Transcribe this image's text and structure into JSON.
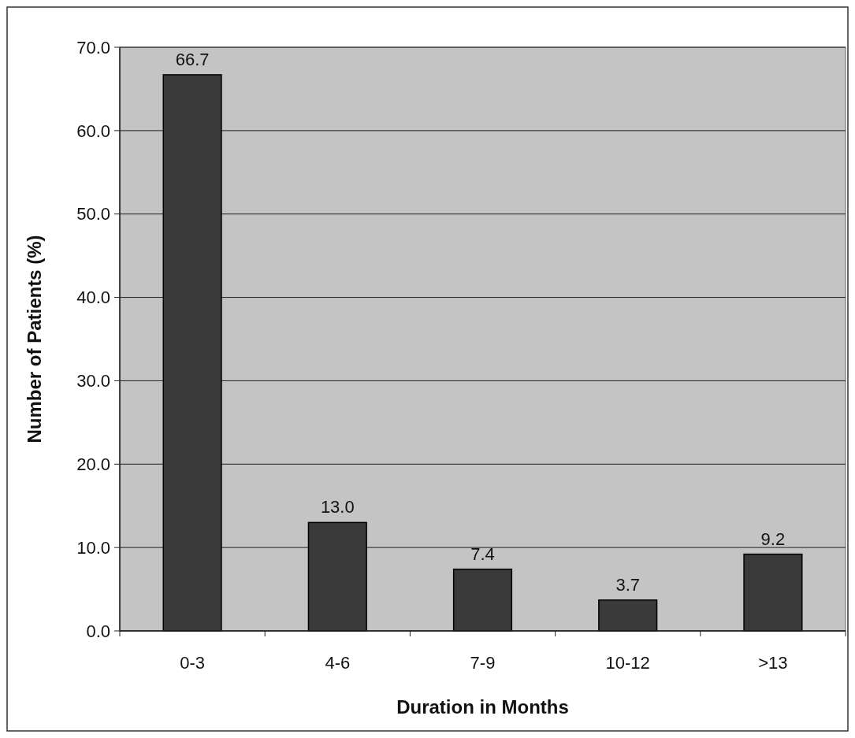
{
  "chart_data": {
    "type": "bar",
    "xlabel": "Duration in Months",
    "ylabel": "Number of Patients (%)",
    "categories": [
      "0-3",
      "4-6",
      "7-9",
      "10-12",
      ">13"
    ],
    "values": [
      66.7,
      13.0,
      7.4,
      3.7,
      9.2
    ],
    "value_labels": [
      "66.7",
      "13.0",
      "7.4",
      "3.7",
      "9.2"
    ],
    "color": "#3a3a3a",
    "ylim": [
      0,
      70
    ],
    "yticks": [
      {
        "value": 0,
        "label": "0.0"
      },
      {
        "value": 10,
        "label": "10.0"
      },
      {
        "value": 20,
        "label": "20.0"
      },
      {
        "value": 30,
        "label": "30.0"
      },
      {
        "value": 40,
        "label": "40.0"
      },
      {
        "value": 50,
        "label": "50.0"
      },
      {
        "value": 60,
        "label": "60.0"
      },
      {
        "value": 70,
        "label": "70.0"
      }
    ],
    "grid": "y"
  }
}
